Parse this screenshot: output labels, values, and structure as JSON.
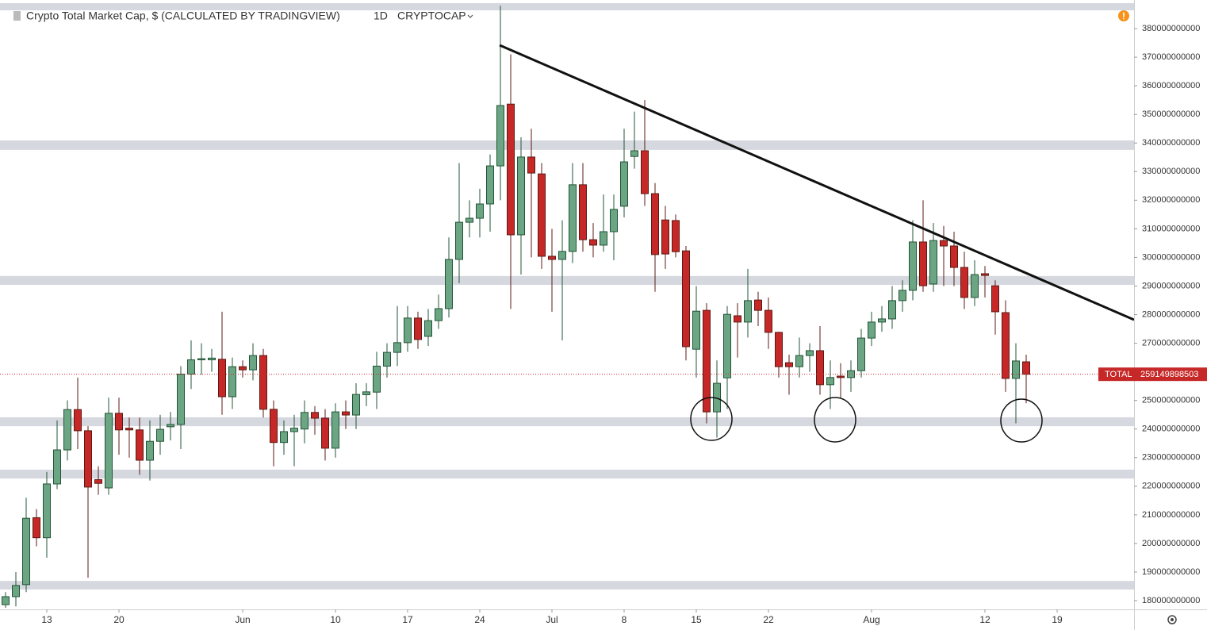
{
  "chart_data": {
    "type": "candlestick",
    "title": "Crypto Total Market Cap, $ (CALCULATED BY TRADINGVIEW)",
    "interval": "1D",
    "symbol": "CRYPTOCAP",
    "price_label": "TOTAL",
    "up_color": "#6ba583",
    "down_color": "#c62828",
    "ylim": [
      176950000000.0,
      390000000000.0
    ],
    "yticks": [
      180000000000,
      190000000000,
      200000000000,
      210000000000,
      220000000000,
      230000000000,
      240000000000,
      250000000000,
      260000000000,
      270000000000,
      280000000000,
      290000000000,
      300000000000,
      310000000000,
      320000000000,
      330000000000,
      340000000000,
      350000000000,
      360000000000,
      370000000000,
      380000000000
    ],
    "categories": [
      null,
      null,
      null,
      null,
      "13",
      null,
      null,
      null,
      null,
      null,
      null,
      "20",
      null,
      null,
      null,
      null,
      null,
      null,
      null,
      null,
      null,
      null,
      null,
      "Jun",
      null,
      null,
      null,
      null,
      null,
      null,
      null,
      null,
      "10",
      null,
      null,
      null,
      null,
      null,
      null,
      "17",
      null,
      null,
      null,
      null,
      null,
      null,
      "24",
      null,
      null,
      null,
      null,
      null,
      null,
      "Jul",
      null,
      null,
      null,
      null,
      null,
      null,
      "8",
      null,
      null,
      null,
      null,
      null,
      null,
      "15",
      null,
      null,
      null,
      null,
      null,
      null,
      "22",
      null,
      null,
      null,
      null,
      null,
      null,
      null,
      null,
      null,
      "Aug",
      null,
      null,
      null,
      null,
      null,
      null,
      null,
      null,
      null,
      null,
      "12",
      null,
      null,
      null,
      null,
      null,
      null,
      "19",
      null,
      null,
      null,
      null,
      null,
      null,
      null
    ],
    "open": [
      178600000000.0,
      181400000000.0,
      185600000000.0,
      209000000000.0,
      202000000000.0,
      220800000000.0,
      232700000000.0,
      246800000000.0,
      239400000000.0,
      222300000000.0,
      219400000000.0,
      245500000000.0,
      240300000000.0,
      239700000000.0,
      229100000000.0,
      235700000000.0,
      240800000000.0,
      241600000000.0,
      259200000000.0,
      264200000000.0,
      264200000000.0,
      264400000000.0,
      251300000000.0,
      261800000000.0,
      260700000000.0,
      265700000000.0,
      246900000000.0,
      235300000000.0,
      239100000000.0,
      240000000000.0,
      245800000000.0,
      243800000000.0,
      233300000000.0,
      246000000000.0,
      244900000000.0,
      252000000000.0,
      252900000000.0,
      262000000000.0,
      266800000000.0,
      270200000000.0,
      278800000000.0,
      272400000000.0,
      277900000000.0,
      282100000000.0,
      299300000000.0,
      312300000000.0,
      313700000000.0,
      318700000000.0,
      332000000000.0,
      353600000000.0,
      307900000000.0,
      335100000000.0,
      329200000000.0,
      300400000000.0,
      299300000000.0,
      302100000000.0,
      325400000000.0,
      306200000000.0,
      304300000000.0,
      309000000000.0,
      317900000000.0,
      335300000000.0,
      337300000000.0,
      322300000000.0,
      313100000000.0,
      312900000000.0,
      302300000000.0,
      267900000000.0,
      281500000000.0,
      246000000000.0,
      257900000000.0,
      279600000000.0,
      277400000000.0,
      285100000000.0,
      281500000000.0,
      273800000000.0,
      263200000000.0,
      261800000000.0,
      265700000000.0,
      267400000000.0,
      255500000000.0,
      258500000000.0,
      258000000000.0,
      260400000000.0,
      271800000000.0,
      277400000000.0,
      278500000000.0,
      284900000000.0,
      288500000000.0,
      305400000000.0,
      290700000000.0,
      305900000000.0,
      304000000000.0,
      296500000000.0,
      286000000000.0,
      294300000000.0,
      290100000000.0,
      280700000000.0,
      257700000000.0,
      263500000000.0,
      null,
      null,
      null,
      null,
      null,
      null,
      null,
      null,
      null,
      null
    ],
    "high": [
      183000000000.0,
      190000000000.0,
      216000000000.0,
      212000000000.0,
      225000000000.0,
      243000000000.0,
      250000000000.0,
      258000000000.0,
      241000000000.0,
      227000000000.0,
      251000000000.0,
      251000000000.0,
      244000000000.0,
      244000000000.0,
      243000000000.0,
      245000000000.0,
      246000000000.0,
      262000000000.0,
      271000000000.0,
      270000000000.0,
      268000000000.0,
      281000000000.0,
      265000000000.0,
      264000000000.0,
      270000000000.0,
      268000000000.0,
      250000000000.0,
      243000000000.0,
      245000000000.0,
      250000000000.0,
      248000000000.0,
      247000000000.0,
      249000000000.0,
      250000000000.0,
      256000000000.0,
      256000000000.0,
      267000000000.0,
      270000000000.0,
      283000000000.0,
      283000000000.0,
      281000000000.0,
      282000000000.0,
      287000000000.0,
      307000000000.0,
      333000000000.0,
      320000000000.0,
      324000000000.0,
      336000000000.0,
      388000000000.0,
      371000000000.0,
      342000000000.0,
      345000000000.0,
      333000000000.0,
      310000000000.0,
      313000000000.0,
      333000000000.0,
      333000000000.0,
      312000000000.0,
      322000000000.0,
      322000000000.0,
      345000000000.0,
      351000000000.0,
      355000000000.0,
      326000000000.0,
      318000000000.0,
      315000000000.0,
      304000000000.0,
      290000000000.0,
      284000000000.0,
      264000000000.0,
      283000000000.0,
      284000000000.0,
      296000000000.0,
      288000000000.0,
      286000000000.0,
      274000000000.0,
      266000000000.0,
      272000000000.0,
      270000000000.0,
      276000000000.0,
      264000000000.0,
      263000000000.0,
      264000000000.0,
      275000000000.0,
      281000000000.0,
      283000000000.0,
      290000000000.0,
      292000000000.0,
      313000000000.0,
      320000000000.0,
      312000000000.0,
      311000000000.0,
      309000000000.0,
      302000000000.0,
      299000000000.0,
      297000000000.0,
      292000000000.0,
      285000000000.0,
      270000000000.0,
      266000000000.0,
      null,
      null,
      null,
      null,
      null,
      null,
      null,
      null,
      null,
      null
    ],
    "low": [
      177500000000.0,
      178000000000.0,
      183000000000.0,
      199000000000.0,
      195000000000.0,
      219000000000.0,
      229000000000.0,
      233000000000.0,
      188000000000.0,
      217000000000.0,
      217000000000.0,
      231000000000.0,
      230000000000.0,
      224000000000.0,
      222000000000.0,
      231000000000.0,
      236000000000.0,
      233000000000.0,
      254000000000.0,
      259000000000.0,
      260000000000.0,
      245000000000.0,
      247000000000.0,
      258000000000.0,
      257000000000.0,
      244000000000.0,
      227000000000.0,
      231000000000.0,
      227000000000.0,
      235000000000.0,
      238000000000.0,
      229000000000.0,
      230000000000.0,
      240000000000.0,
      240000000000.0,
      248000000000.0,
      247000000000.0,
      258000000000.0,
      262000000000.0,
      267000000000.0,
      268000000000.0,
      269000000000.0,
      275000000000.0,
      279000000000.0,
      291000000000.0,
      307000000000.0,
      307000000000.0,
      309000000000.0,
      320000000000.0,
      282000000000.0,
      294000000000.0,
      300000000000.0,
      296000000000.0,
      281000000000.0,
      271000000000.0,
      298000000000.0,
      302000000000.0,
      300000000000.0,
      302000000000.0,
      299000000000.0,
      314000000000.0,
      331000000000.0,
      318000000000.0,
      288000000000.0,
      296000000000.0,
      300000000000.0,
      264000000000.0,
      258000000000.0,
      242000000000.0,
      237000000000.0,
      247000000000.0,
      265000000000.0,
      272000000000.0,
      276000000000.0,
      268000000000.0,
      258000000000.0,
      252000000000.0,
      258000000000.0,
      260000000000.0,
      252000000000.0,
      247000000000.0,
      251000000000.0,
      253000000000.0,
      258000000000.0,
      269000000000.0,
      274000000000.0,
      275000000000.0,
      281000000000.0,
      285000000000.0,
      288000000000.0,
      288000000000.0,
      290000000000.0,
      290000000000.0,
      282000000000.0,
      283000000000.0,
      286000000000.0,
      273000000000.0,
      253000000000.0,
      242000000000.0,
      249000000000.0,
      null,
      null,
      null,
      null,
      null,
      null,
      null,
      null,
      null,
      null
    ],
    "close": [
      181400000000.0,
      185300000000.0,
      208800000000.0,
      202000000000.0,
      220800000000.0,
      232700000000.0,
      246800000000.0,
      239400000000.0,
      219700000000.0,
      221000000000.0,
      245500000000.0,
      239700000000.0,
      239700000000.0,
      229100000000.0,
      235700000000.0,
      239900000000.0,
      241600000000.0,
      259200000000.0,
      264200000000.0,
      264600000000.0,
      264800000000.0,
      251300000000.0,
      261800000000.0,
      260700000000.0,
      265700000000.0,
      246900000000.0,
      235300000000.0,
      239100000000.0,
      240300000000.0,
      245800000000.0,
      243800000000.0,
      233300000000.0,
      246000000000.0,
      244900000000.0,
      252100000000.0,
      253000000000.0,
      262000000000.0,
      266800000000.0,
      270200000000.0,
      278800000000.0,
      271300000000.0,
      277900000000.0,
      282100000000.0,
      299300000000.0,
      312300000000.0,
      313700000000.0,
      318700000000.0,
      332000000000.0,
      353100000000.0,
      307900000000.0,
      335100000000.0,
      329500000000.0,
      300400000000.0,
      299300000000.0,
      302100000000.0,
      325400000000.0,
      306200000000.0,
      304300000000.0,
      309000000000.0,
      316800000000.0,
      333400000000.0,
      337300000000.0,
      322300000000.0,
      301000000000.0,
      301200000000.0,
      302000000000.0,
      268800000000.0,
      281200000000.0,
      246000000000.0,
      256000000000.0,
      280100000000.0,
      277400000000.0,
      284900000000.0,
      281500000000.0,
      273800000000.0,
      261800000000.0,
      261800000000.0,
      265700000000.0,
      267400000000.0,
      255500000000.0,
      258000000000.0,
      258000000000.0,
      260400000000.0,
      271800000000.0,
      277400000000.0,
      278500000000.0,
      284900000000.0,
      288500000000.0,
      305400000000.0,
      290100000000.0,
      305900000000.0,
      304000000000.0,
      296500000000.0,
      286000000000.0,
      294000000000.0,
      293700000000.0,
      281000000000.0,
      257700000000.0,
      263800000000.0,
      259149898503,
      null,
      null,
      null,
      null,
      null,
      null,
      null,
      null,
      null,
      null
    ],
    "zones": [
      [
        386400000000.0,
        388900000000.0
      ],
      [
        337600000000.0,
        340900000000.0
      ],
      [
        290400000000.0,
        293500000000.0
      ],
      [
        241000000000.0,
        244100000000.0
      ],
      [
        222700000000.0,
        225800000000.0
      ],
      [
        183900000000.0,
        186900000000.0
      ]
    ],
    "trendline": [
      374200000000.0,
      278200000000.0
    ]
  }
}
